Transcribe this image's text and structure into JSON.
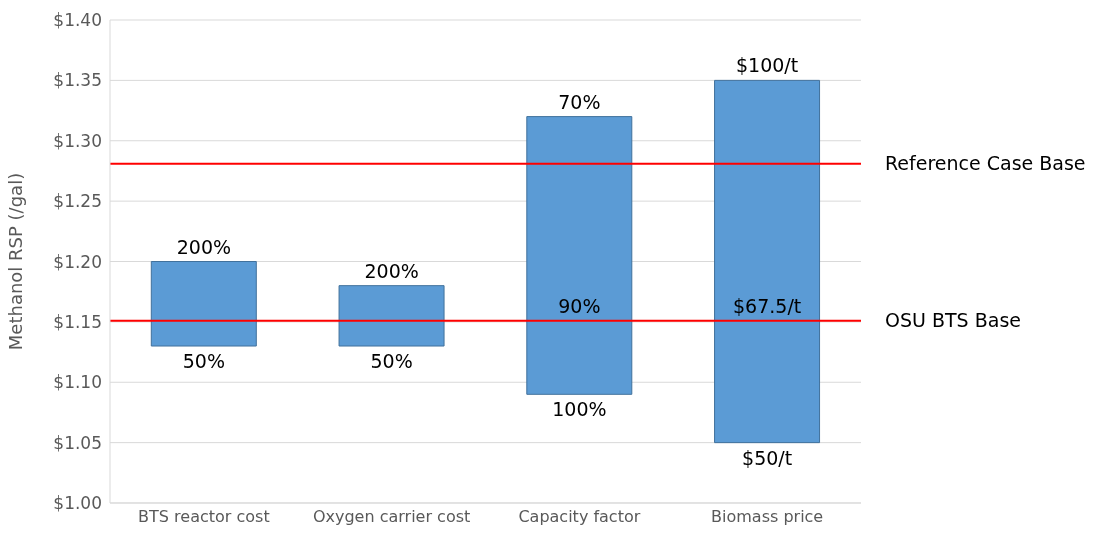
{
  "chart_data": {
    "type": "bar",
    "ylabel": "Methanol RSP (/gal)",
    "categories": [
      "BTS reactor cost",
      "Oxygen carrier cost",
      "Capacity factor",
      "Biomass price"
    ],
    "base": [
      1.13,
      1.13,
      1.09,
      1.05
    ],
    "values": [
      0.07,
      0.05,
      0.23,
      0.3
    ],
    "color": "#5b9bd5",
    "ylim": [
      1.0,
      1.4
    ],
    "yticks": [
      {
        "value": 1.0,
        "label": "$1.00"
      },
      {
        "value": 1.05,
        "label": "$1.05"
      },
      {
        "value": 1.1,
        "label": "$1.10"
      },
      {
        "value": 1.15,
        "label": "$1.15"
      },
      {
        "value": 1.2,
        "label": "$1.20"
      },
      {
        "value": 1.25,
        "label": "$1.25"
      },
      {
        "value": 1.3,
        "label": "$1.30"
      },
      {
        "value": 1.35,
        "label": "$1.35"
      },
      {
        "value": 1.4,
        "label": "$1.40"
      }
    ],
    "grid": "y",
    "ref_lines": [
      {
        "axis": "y",
        "value": 1.281,
        "label": "Reference Case Base",
        "color": "#ff0000"
      },
      {
        "axis": "y",
        "value": 1.151,
        "label": "OSU BTS Base",
        "color": "#ff0000"
      }
    ],
    "annotations": [
      {
        "text": "200%",
        "x": "BTS reactor cost",
        "y": 1.2
      },
      {
        "text": "50%",
        "x": "BTS reactor cost",
        "y": 1.13
      },
      {
        "text": "200%",
        "x": "Oxygen carrier cost",
        "y": 1.18
      },
      {
        "text": "50%",
        "x": "Oxygen carrier cost",
        "y": 1.13
      },
      {
        "text": "70%",
        "x": "Capacity factor",
        "y": 1.32
      },
      {
        "text": "90%",
        "x": "Capacity factor",
        "y": 1.151
      },
      {
        "text": "100%",
        "x": "Capacity factor",
        "y": 1.09
      },
      {
        "text": "$100/t",
        "x": "Biomass price",
        "y": 1.35
      },
      {
        "text": "$67.5/t",
        "x": "Biomass price",
        "y": 1.151
      },
      {
        "text": "$50/t",
        "x": "Biomass price",
        "y": 1.05
      }
    ]
  }
}
